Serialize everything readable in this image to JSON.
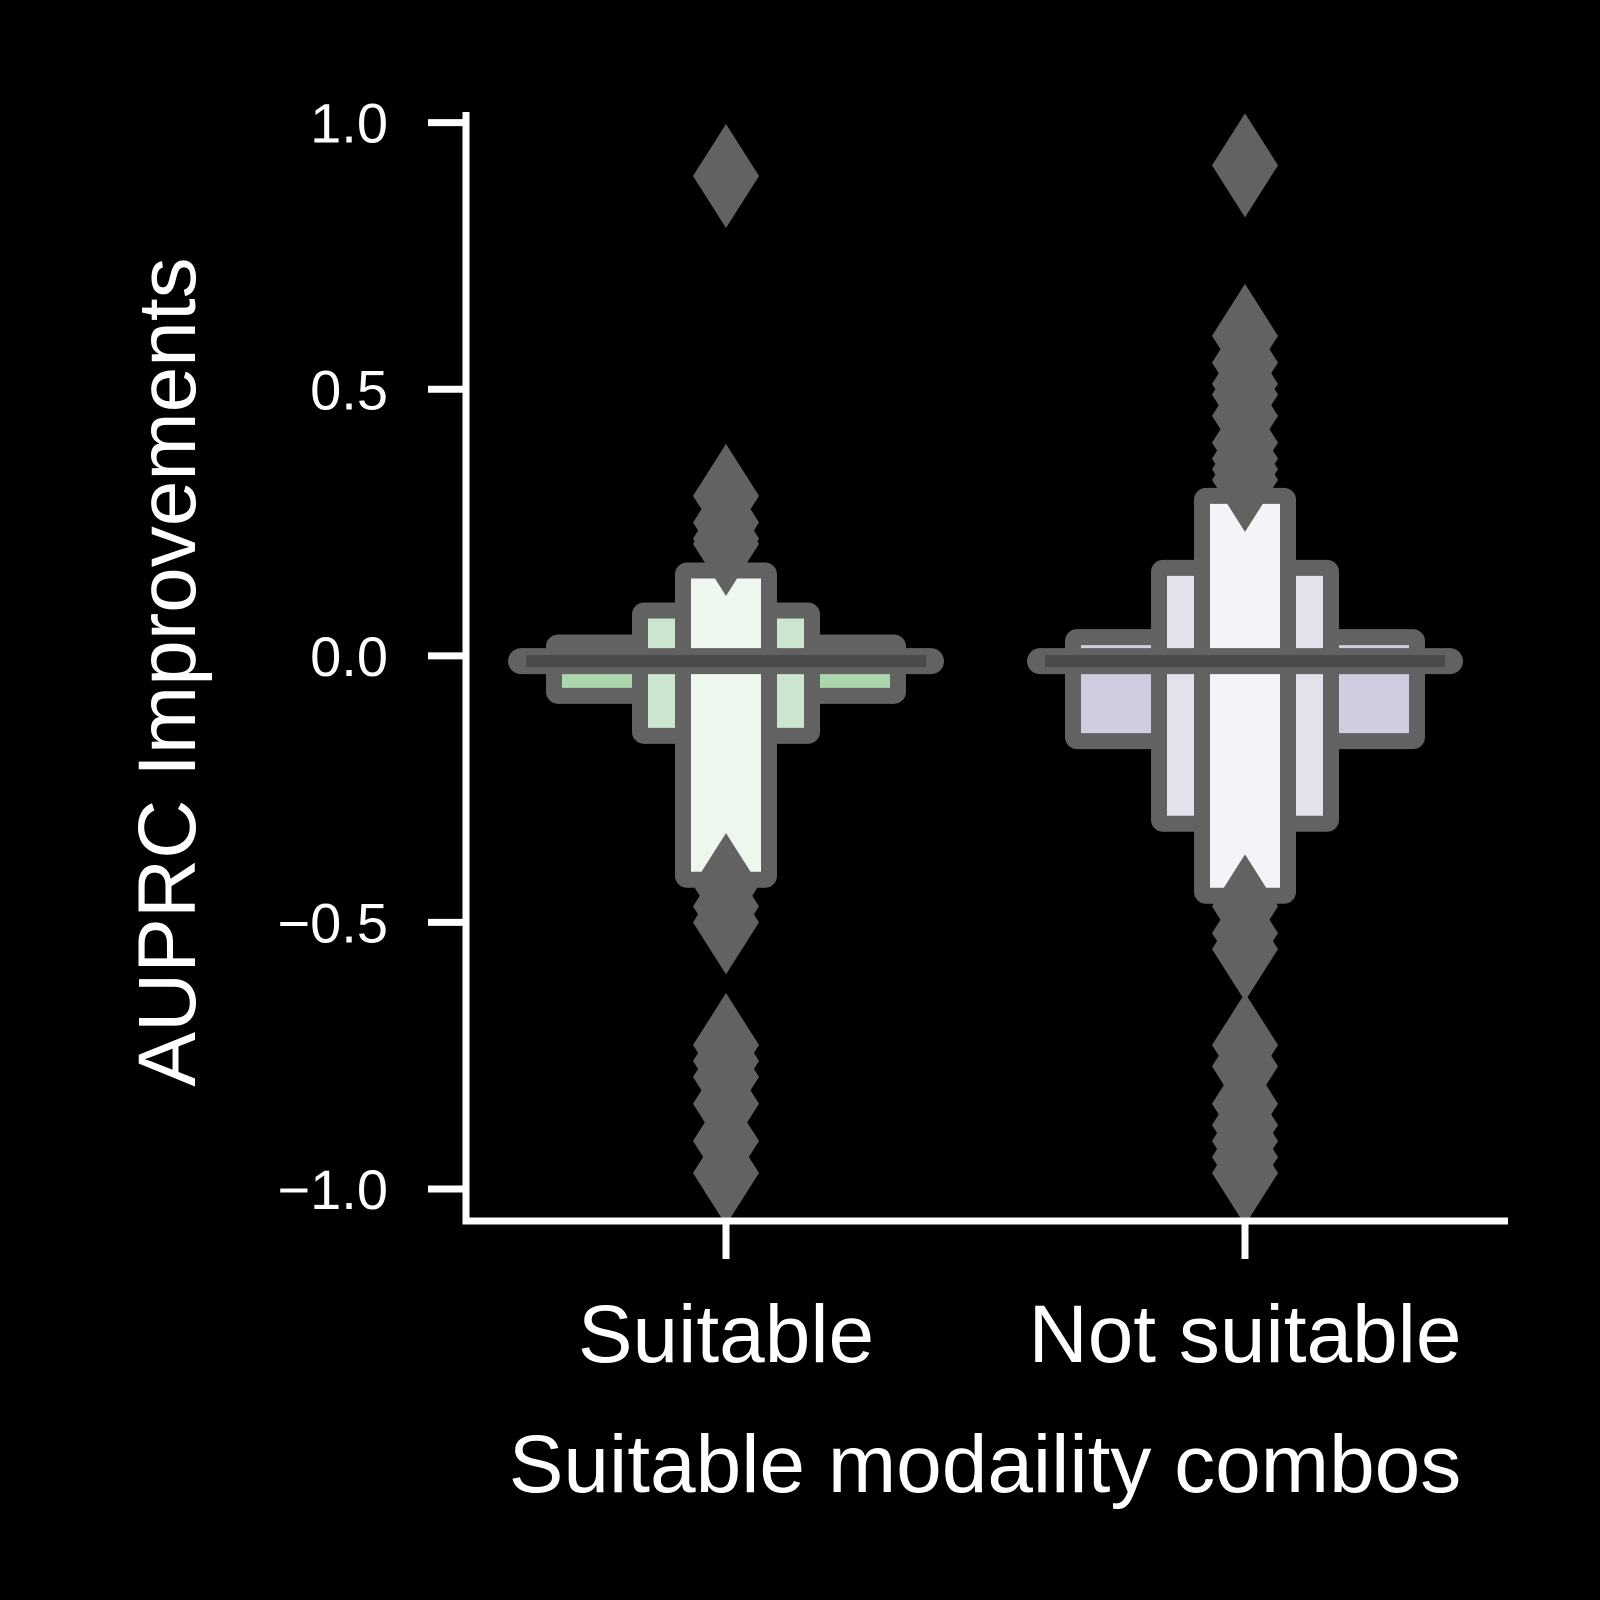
{
  "chart_data": {
    "type": "boxen",
    "xlabel": "Suitable modaility combos",
    "ylabel": "AUPRC Improvements",
    "ylim": [
      -1.06,
      1.02
    ],
    "yticks": [
      1.0,
      0.5,
      0.0,
      -0.5,
      -1.0
    ],
    "ytick_labels": [
      "1.0",
      "0.5",
      "0.0",
      "−0.5",
      "−1.0"
    ],
    "grid": false,
    "edge_color": "#626262",
    "background": "#000000",
    "axis_color": "#ffffff",
    "categories": [
      "Suitable",
      "Not suitable"
    ],
    "groups": [
      {
        "category": "Suitable",
        "median": -0.01,
        "boxes": [
          {
            "lower": -0.075,
            "upper": 0.025,
            "color": "#acd6ad",
            "halfwidth": 0.4
          },
          {
            "lower": -0.15,
            "upper": 0.085,
            "color": "#cce5cf",
            "halfwidth": 0.2
          },
          {
            "lower": -0.42,
            "upper": 0.16,
            "color": "#eef7ee",
            "halfwidth": 0.1
          }
        ],
        "outliers": [
          0.9,
          0.3,
          0.25,
          0.22,
          0.21,
          -0.43,
          -0.47,
          -0.5,
          -0.73,
          -0.76,
          -0.79,
          -0.84,
          -0.91,
          -0.97
        ]
      },
      {
        "category": "Not suitable",
        "median": -0.01,
        "boxes": [
          {
            "lower": -0.16,
            "upper": 0.035,
            "color": "#d2cce1",
            "halfwidth": 0.4
          },
          {
            "lower": -0.315,
            "upper": 0.165,
            "color": "#e4e0ec",
            "halfwidth": 0.2
          },
          {
            "lower": -0.45,
            "upper": 0.3,
            "color": "#f4f3f8",
            "halfwidth": 0.1
          }
        ],
        "outliers": [
          0.92,
          0.6,
          0.55,
          0.51,
          0.49,
          0.45,
          0.4,
          0.37,
          0.35,
          0.33,
          -0.47,
          -0.52,
          -0.55,
          -0.73,
          -0.77,
          -0.84,
          -0.88,
          -0.91,
          -0.94,
          -0.97
        ]
      }
    ]
  }
}
